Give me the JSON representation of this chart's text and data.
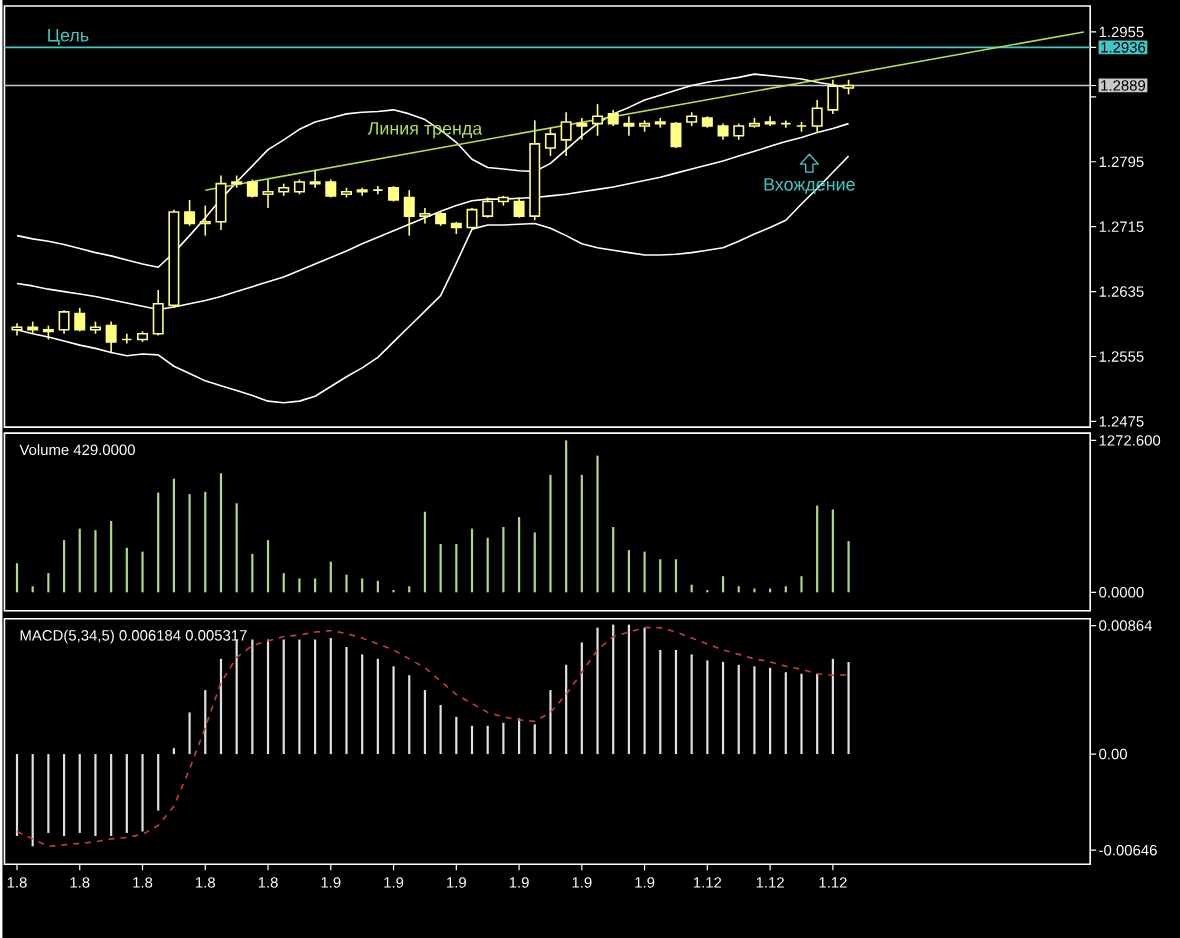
{
  "chart_data": [
    {
      "type": "candlestick",
      "color": "#ffff80",
      "tick_labels": "y",
      "ylim": [
        1.2468,
        1.2987
      ],
      "yticks": [
        1.2475,
        1.2555,
        1.2635,
        1.2715,
        1.2795,
        {
          "value": 1.2875,
          "label": null
        },
        1.2955,
        {
          "value": 1.2936,
          "label": "1.2936"
        },
        {
          "value": 1.2889,
          "label": "1.2889"
        }
      ],
      "categories": [
        "1.8",
        null,
        null,
        null,
        "1.8",
        null,
        null,
        null,
        "1.8",
        null,
        null,
        null,
        "1.8",
        null,
        null,
        null,
        "1.8",
        null,
        null,
        null,
        "1.9",
        null,
        null,
        null,
        "1.9",
        null,
        null,
        null,
        "1.9",
        null,
        null,
        null,
        "1.9",
        null,
        null,
        null,
        "1.9",
        null,
        null,
        null,
        "1.9",
        null,
        null,
        null,
        "1.12",
        null,
        null,
        null,
        "1.12",
        null,
        null,
        null,
        "1.12",
        null,
        null,
        null,
        null,
        null,
        null,
        null,
        null,
        null,
        null,
        null,
        null,
        null,
        null,
        null,
        null
      ],
      "ohlc": [
        [
          1.2588,
          1.2596,
          1.2581,
          1.2591
        ],
        [
          1.2591,
          1.2598,
          1.2583,
          1.2588
        ],
        [
          1.2588,
          1.2593,
          1.2576,
          1.2586
        ],
        [
          1.2588,
          1.2612,
          1.2583,
          1.261
        ],
        [
          1.2608,
          1.2615,
          1.2586,
          1.2588
        ],
        [
          1.2588,
          1.2598,
          1.2583,
          1.2591
        ],
        [
          1.2593,
          1.2598,
          1.2559,
          1.2573
        ],
        [
          1.2576,
          1.2583,
          1.2571,
          1.2576
        ],
        [
          1.2576,
          1.2586,
          1.2573,
          1.2583
        ],
        [
          1.2583,
          1.2637,
          1.2581,
          1.262
        ],
        [
          1.2618,
          1.2736,
          1.2615,
          1.2733
        ],
        [
          1.2733,
          1.2748,
          1.2716,
          1.2719
        ],
        [
          1.2719,
          1.2741,
          1.2704,
          1.2721
        ],
        [
          1.2721,
          1.2778,
          1.2711,
          1.2768
        ],
        [
          1.2768,
          1.2778,
          1.2763,
          1.277
        ],
        [
          1.277,
          1.2773,
          1.2751,
          1.2753
        ],
        [
          1.2755,
          1.2773,
          1.2738,
          1.2758
        ],
        [
          1.2758,
          1.2768,
          1.2753,
          1.2763
        ],
        [
          1.2758,
          1.2773,
          1.2755,
          1.277
        ],
        [
          1.2768,
          1.2785,
          1.2763,
          1.277
        ],
        [
          1.277,
          1.2773,
          1.2751,
          1.2753
        ],
        [
          1.2755,
          1.2763,
          1.2751,
          1.2758
        ],
        [
          1.2758,
          1.2763,
          1.2753,
          1.276
        ],
        [
          1.276,
          1.2765,
          1.2755,
          1.276
        ],
        [
          1.2763,
          1.2765,
          1.2746,
          1.2748
        ],
        [
          1.2751,
          1.276,
          1.2704,
          1.2728
        ],
        [
          1.2728,
          1.2738,
          1.2719,
          1.2731
        ],
        [
          1.2731,
          1.2733,
          1.2716,
          1.2719
        ],
        [
          1.2719,
          1.2721,
          1.2706,
          1.2714
        ],
        [
          1.2714,
          1.2738,
          1.2711,
          1.2736
        ],
        [
          1.2728,
          1.2751,
          1.2726,
          1.2746
        ],
        [
          1.2746,
          1.2753,
          1.2741,
          1.2751
        ],
        [
          1.2746,
          1.2751,
          1.2726,
          1.2728
        ],
        [
          1.2728,
          1.2846,
          1.2723,
          1.2817
        ],
        [
          1.2812,
          1.2837,
          1.2802,
          1.2829
        ],
        [
          1.2822,
          1.2856,
          1.2802,
          1.2844
        ],
        [
          1.2842,
          1.2849,
          1.2822,
          1.2839
        ],
        [
          1.2842,
          1.2866,
          1.2827,
          1.2851
        ],
        [
          1.2854,
          1.2859,
          1.2839,
          1.2842
        ],
        [
          1.2842,
          1.2851,
          1.2827,
          1.2839
        ],
        [
          1.2839,
          1.2846,
          1.2832,
          1.2842
        ],
        [
          1.2842,
          1.2849,
          1.2837,
          1.2844
        ],
        [
          1.2842,
          1.2844,
          1.2812,
          1.2814
        ],
        [
          1.2844,
          1.2856,
          1.2839,
          1.2851
        ],
        [
          1.2849,
          1.2851,
          1.2837,
          1.2839
        ],
        [
          1.2839,
          1.2842,
          1.2822,
          1.2827
        ],
        [
          1.2827,
          1.2842,
          1.2822,
          1.2839
        ],
        [
          1.2839,
          1.2849,
          1.2837,
          1.2842
        ],
        [
          1.2842,
          1.2851,
          1.2839,
          1.2844
        ],
        [
          1.2842,
          1.2846,
          1.2837,
          1.2842
        ],
        [
          1.2839,
          1.2844,
          1.2832,
          1.2839
        ],
        [
          1.2839,
          1.2871,
          1.2832,
          1.2861
        ],
        [
          1.2859,
          1.2896,
          1.2854,
          1.2888
        ],
        [
          1.2886,
          1.2896,
          1.2878,
          1.2889
        ],
        null,
        null,
        null,
        null,
        null,
        null,
        null,
        null,
        null,
        null,
        null,
        null,
        null,
        null,
        null
      ],
      "series": [
        {
          "type": "line",
          "color": "#ffffff",
          "values": [
            1.2704,
            1.27,
            1.2697,
            1.2693,
            1.2688,
            1.2683,
            1.2679,
            1.2674,
            1.2669,
            1.2665,
            1.2683,
            1.2704,
            1.2726,
            1.2749,
            1.277,
            1.279,
            1.281,
            1.2822,
            1.2835,
            1.2844,
            1.2849,
            1.2854,
            1.2856,
            1.2857,
            1.2859,
            1.2854,
            1.2847,
            1.2834,
            1.2819,
            1.2798,
            1.2788,
            1.2786,
            1.2784,
            1.2783,
            1.2793,
            1.281,
            1.2827,
            1.2842,
            1.2854,
            1.2862,
            1.2871,
            1.2877,
            1.2883,
            1.2889,
            1.2893,
            1.2896,
            1.2899,
            1.2903,
            1.2901,
            1.2899,
            1.2897,
            1.2893,
            1.289,
            1.2886,
            null,
            null,
            null,
            null,
            null,
            null,
            null,
            null,
            null,
            null,
            null,
            null,
            null,
            null,
            null
          ]
        },
        {
          "type": "line",
          "color": "#ffffff",
          "values": [
            1.2645,
            1.2642,
            1.2638,
            1.2635,
            1.2632,
            1.2629,
            1.2625,
            1.2621,
            1.2617,
            1.2613,
            1.2616,
            1.262,
            1.2624,
            1.2629,
            1.2635,
            1.2641,
            1.2647,
            1.2653,
            1.2661,
            1.2669,
            1.2677,
            1.2685,
            1.2694,
            1.2702,
            1.271,
            1.2718,
            1.2726,
            1.2734,
            1.2741,
            1.2747,
            1.2749,
            1.2749,
            1.275,
            1.2751,
            1.2753,
            1.2755,
            1.2758,
            1.2761,
            1.2764,
            1.2768,
            1.2772,
            1.2776,
            1.2781,
            1.2786,
            1.2791,
            1.2796,
            1.2802,
            1.2808,
            1.2814,
            1.282,
            1.2825,
            1.2831,
            1.2836,
            1.2842,
            null,
            null,
            null,
            null,
            null,
            null,
            null,
            null,
            null,
            null,
            null,
            null,
            null,
            null,
            null
          ]
        },
        {
          "type": "line",
          "color": "#ffffff",
          "values": [
            1.2588,
            1.2583,
            1.2579,
            1.2574,
            1.2569,
            1.2565,
            1.256,
            1.2556,
            1.2558,
            1.2557,
            1.2543,
            1.2534,
            1.2525,
            1.2519,
            1.2513,
            1.2507,
            1.25,
            1.2498,
            1.25,
            1.2506,
            1.2518,
            1.253,
            1.2541,
            1.2554,
            1.2573,
            1.2592,
            1.2611,
            1.263,
            1.267,
            1.2712,
            1.2717,
            1.2717,
            1.2718,
            1.2719,
            1.2713,
            1.2704,
            1.2694,
            1.2689,
            1.2686,
            1.2683,
            1.268,
            1.268,
            1.2681,
            1.2683,
            1.2686,
            1.2689,
            1.2697,
            1.2706,
            1.2714,
            1.2723,
            1.2743,
            1.2762,
            1.2782,
            1.2802,
            null,
            null,
            null,
            null,
            null,
            null,
            null,
            null,
            null,
            null,
            null,
            null,
            null,
            null,
            null
          ]
        },
        {
          "type": "line",
          "name": "Линия тренда",
          "color": "#b4e050",
          "values": [
            null,
            null,
            null,
            null,
            null,
            null,
            null,
            null,
            null,
            null,
            null,
            null,
            1.276,
            null,
            null,
            null,
            null,
            null,
            null,
            null,
            null,
            null,
            null,
            null,
            null,
            null,
            null,
            null,
            null,
            null,
            null,
            null,
            null,
            null,
            null,
            null,
            null,
            null,
            null,
            null,
            null,
            null,
            null,
            null,
            null,
            null,
            null,
            null,
            null,
            null,
            null,
            null,
            null,
            null,
            null,
            null,
            null,
            null,
            null,
            null,
            null,
            null,
            null,
            null,
            null,
            null,
            null,
            null,
            1.2955
          ]
        }
      ],
      "ref_lines": [
        {
          "axis": "y",
          "value": 1.2936,
          "label": "Цель",
          "color": "#40c8c8"
        },
        {
          "axis": "y",
          "value": 1.2889,
          "color": "#c8c8c8"
        }
      ],
      "annotations": [
        {
          "text": "Вхождение",
          "y": 1.2765
        }
      ]
    },
    {
      "type": "bar",
      "title": "Volume  429.0000",
      "color": "#b0d888",
      "tick_labels": "y",
      "ylim": [
        -154,
        1334
      ],
      "yticks": [
        {
          "value": 0,
          "label": "0.0000"
        },
        {
          "value": 1272.6,
          "label": "1272.600"
        }
      ],
      "categories": [
        "1.8",
        null,
        null,
        null,
        "1.8",
        null,
        null,
        null,
        "1.8",
        null,
        null,
        null,
        "1.8",
        null,
        null,
        null,
        "1.8",
        null,
        null,
        null,
        "1.9",
        null,
        null,
        null,
        "1.9",
        null,
        null,
        null,
        "1.9",
        null,
        null,
        null,
        "1.9",
        null,
        null,
        null,
        "1.9",
        null,
        null,
        null,
        "1.9",
        null,
        null,
        null,
        "1.12",
        null,
        null,
        null,
        "1.12",
        null,
        null,
        null,
        "1.12",
        null,
        null,
        null,
        null,
        null,
        null,
        null,
        null,
        null,
        null,
        null,
        null,
        null,
        null,
        null,
        null
      ],
      "values": [
        244,
        51,
        161,
        437,
        534,
        521,
        598,
        373,
        341,
        836,
        952,
        823,
        842,
        997,
        746,
        322,
        437,
        161,
        116,
        116,
        257,
        148,
        116,
        96,
        19,
        51,
        675,
        405,
        405,
        534,
        457,
        547,
        630,
        502,
        984,
        1272.6,
        984,
        1145,
        547,
        354,
        341,
        277,
        277,
        64,
        19,
        135,
        51,
        32,
        32,
        51,
        135,
        727,
        694,
        429,
        null,
        null,
        null,
        null,
        null,
        null,
        null,
        null,
        null,
        null,
        null,
        null,
        null,
        null,
        null
      ]
    },
    {
      "type": "bar",
      "title": "MACD(5,34,5)  0.006184  0.005317",
      "ylim": [
        -0.0074,
        0.0091
      ],
      "yticks": [
        {
          "value": 0.00864,
          "label": "0.00864"
        },
        {
          "value": 0,
          "label": "0.00"
        },
        {
          "value": -0.00646,
          "label": "-0.00646"
        }
      ],
      "categories": [
        "1.8",
        null,
        null,
        null,
        "1.8",
        null,
        null,
        null,
        "1.8",
        null,
        null,
        null,
        "1.8",
        null,
        null,
        null,
        "1.8",
        null,
        null,
        null,
        "1.9",
        null,
        null,
        null,
        "1.9",
        null,
        null,
        null,
        "1.9",
        null,
        null,
        null,
        "1.9",
        null,
        null,
        null,
        "1.9",
        null,
        null,
        null,
        "1.9",
        null,
        null,
        null,
        "1.12",
        null,
        null,
        null,
        "1.12",
        null,
        null,
        null,
        "1.12",
        null,
        null,
        null,
        null,
        null,
        null,
        null,
        null,
        null,
        null,
        null,
        null,
        null,
        null,
        null,
        null
      ],
      "series": [
        {
          "type": "bar",
          "color": "#e0e0e0",
          "values": [
            -0.0055,
            -0.0062,
            -0.0053,
            -0.0055,
            -0.0053,
            -0.0055,
            -0.0055,
            -0.0053,
            -0.0052,
            -0.0038,
            0.0004,
            0.0028,
            0.0043,
            0.0064,
            0.0077,
            0.0077,
            0.0077,
            0.0077,
            0.0077,
            0.0077,
            0.0078,
            0.0072,
            0.0067,
            0.0064,
            0.0059,
            0.0053,
            0.0043,
            0.0033,
            0.0025,
            0.0019,
            0.0019,
            0.0021,
            0.0024,
            0.002,
            0.0043,
            0.006,
            0.0075,
            0.0085,
            0.0087,
            0.0087,
            0.0085,
            0.007,
            0.007,
            0.0067,
            0.0063,
            0.0062,
            0.006,
            0.0059,
            0.0058,
            0.0055,
            0.0054,
            0.0054,
            0.0064,
            0.006184,
            null,
            null,
            null,
            null,
            null,
            null,
            null,
            null,
            null,
            null,
            null,
            null,
            null,
            null,
            null
          ]
        },
        {
          "type": "line",
          "color": "#c83c3c",
          "line_style": "dashed",
          "values": [
            -0.0052,
            -0.0057,
            -0.0062,
            -0.0061,
            -0.006,
            -0.0059,
            -0.0057,
            -0.0056,
            -0.0054,
            -0.0048,
            -0.0035,
            -0.001,
            0.0018,
            0.0048,
            0.0065,
            0.0073,
            0.0076,
            0.0079,
            0.008,
            0.0082,
            0.0083,
            0.0081,
            0.0078,
            0.0074,
            0.007,
            0.0064,
            0.0058,
            0.0049,
            0.004,
            0.0034,
            0.0028,
            0.0025,
            0.0023,
            0.0022,
            0.0028,
            0.004,
            0.0055,
            0.007,
            0.0079,
            0.0082,
            0.0085,
            0.0085,
            0.0082,
            0.0078,
            0.0074,
            0.007,
            0.0067,
            0.0064,
            0.0062,
            0.0059,
            0.0057,
            0.0054,
            0.0053,
            0.005317,
            null,
            null,
            null,
            null,
            null,
            null,
            null,
            null,
            null,
            null,
            null,
            null,
            null,
            null,
            null
          ]
        }
      ]
    }
  ]
}
